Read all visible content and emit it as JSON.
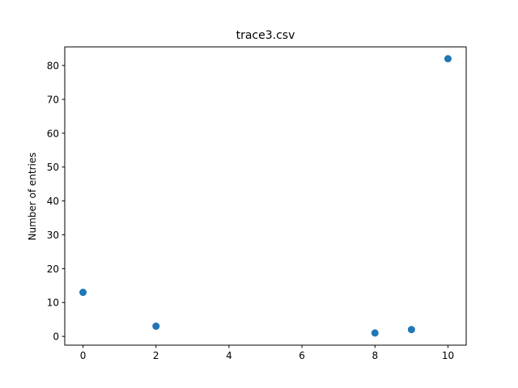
{
  "chart_data": {
    "type": "scatter",
    "title": "trace3.csv",
    "xlabel": "",
    "ylabel": "Number of entries",
    "x": [
      0,
      2,
      8,
      9,
      10
    ],
    "y": [
      13,
      3,
      1,
      2,
      82
    ],
    "xlim": [
      -0.5,
      10.5
    ],
    "ylim": [
      -2.6,
      85.5
    ],
    "xticks": [
      "0",
      "2",
      "4",
      "6",
      "8",
      "10"
    ],
    "yticks": [
      "0",
      "10",
      "20",
      "30",
      "40",
      "50",
      "60",
      "70",
      "80"
    ],
    "grid": false,
    "marker_color": "#1f77b4"
  }
}
